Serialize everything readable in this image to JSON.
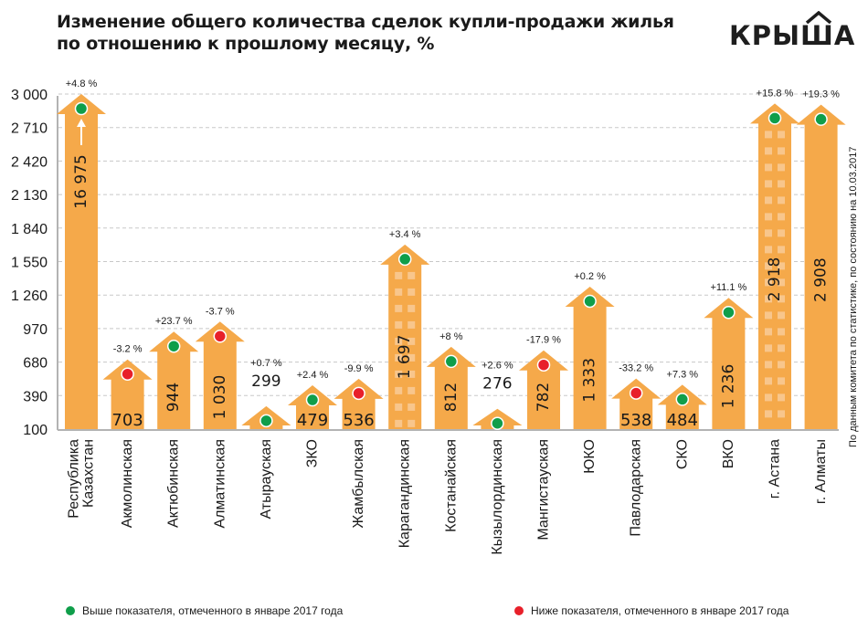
{
  "title": {
    "line1": "Изменение общего количества сделок купли-продажи жилья",
    "line2": "по отношению к прошлому месяцу, %"
  },
  "logo": {
    "text": "КРЫША",
    "icon": "roof-icon"
  },
  "source_note": "По данным комитета по статистике, по состоянию на 10.03.2017",
  "colors": {
    "bar": "#f5a94a",
    "window": "#f8c68c",
    "up": "#0f9e4a",
    "down": "#e8202a",
    "grid": "#c8c8c8",
    "axis": "#b3b3b3"
  },
  "legend": [
    {
      "label": "Выше показателя, отмеченного в январе 2017 года",
      "color": "#0f9e4a",
      "icon": "green-dot-icon"
    },
    {
      "label": "Ниже показателя, отмеченного в январе 2017 года",
      "color": "#e8202a",
      "icon": "red-dot-icon"
    }
  ],
  "chart_data": {
    "type": "bar",
    "title": "Изменение общего количества сделок купли-продажи жилья по отношению к прошлому месяцу, %",
    "xlabel": "",
    "ylabel": "",
    "ylim": [
      100,
      3000
    ],
    "yticks": [
      100,
      390,
      680,
      970,
      1260,
      1550,
      1840,
      2130,
      2420,
      2710,
      3000
    ],
    "ytick_labels": [
      "100",
      "390",
      "680",
      "970",
      "1 260",
      "1 550",
      "1 840",
      "2 130",
      "2 420",
      "2 710",
      "3 000"
    ],
    "grid": true,
    "legend_position": "bottom",
    "categories": [
      "Республика Казахстан",
      "Акмолинская",
      "Актюбинская",
      "Алматинская",
      "Атырауская",
      "ЗКО",
      "Жамбылская",
      "Карагандинская",
      "Костанайская",
      "Кызылординская",
      "Мангистауская",
      "ЮКО",
      "Павлодарская",
      "СКО",
      "ВКО",
      "г. Астана",
      "г. Алматы"
    ],
    "category_lines": [
      [
        "Республика",
        "Казахстан"
      ],
      [
        "Акмолинская"
      ],
      [
        "Актюбинская"
      ],
      [
        "Алматинская"
      ],
      [
        "Атырауская"
      ],
      [
        "ЗКО"
      ],
      [
        "Жамбылская"
      ],
      [
        "Карагандинская"
      ],
      [
        "Костанайская"
      ],
      [
        "Кызылординская"
      ],
      [
        "Мангистауская"
      ],
      [
        "ЮКО"
      ],
      [
        "Павлодарская"
      ],
      [
        "СКО"
      ],
      [
        "ВКО"
      ],
      [
        "г. Астана"
      ],
      [
        "г. Алматы"
      ]
    ],
    "values": [
      16975,
      703,
      944,
      1030,
      299,
      479,
      536,
      1697,
      812,
      276,
      782,
      1333,
      538,
      484,
      1236,
      2918,
      2908
    ],
    "value_labels": [
      "16 975",
      "703",
      "944",
      "1 030",
      "299",
      "479",
      "536",
      "1 697",
      "812",
      "276",
      "782",
      "1 333",
      "538",
      "484",
      "1 236",
      "2 918",
      "2 908"
    ],
    "change_pct": [
      4.8,
      -3.2,
      23.7,
      -3.7,
      0.7,
      2.4,
      -9.9,
      3.4,
      8,
      2.6,
      -17.9,
      0.2,
      -33.2,
      7.3,
      11.1,
      15.8,
      19.3
    ],
    "change_labels": [
      "+4.8 %",
      "-3.2 %",
      "+23.7 %",
      "-3.7 %",
      "+0.7 %",
      "+2.4 %",
      "-9.9 %",
      "+3.4 %",
      "+8 %",
      "+2.6 %",
      "-17.9 %",
      "+0.2 %",
      "-33.2 %",
      "+7.3 %",
      "+11.1 %",
      "+15.8 %",
      "+19.3 %"
    ],
    "vs_january": [
      "above",
      "below",
      "above",
      "below",
      "above",
      "above",
      "below",
      "above",
      "above",
      "above",
      "below",
      "above",
      "below",
      "above",
      "above",
      "above",
      "above"
    ],
    "truncated": [
      true,
      false,
      false,
      false,
      false,
      false,
      false,
      false,
      false,
      false,
      false,
      false,
      false,
      false,
      false,
      false,
      false
    ],
    "windows": [
      false,
      false,
      false,
      false,
      false,
      false,
      false,
      true,
      false,
      false,
      false,
      false,
      false,
      false,
      false,
      true,
      false
    ]
  }
}
